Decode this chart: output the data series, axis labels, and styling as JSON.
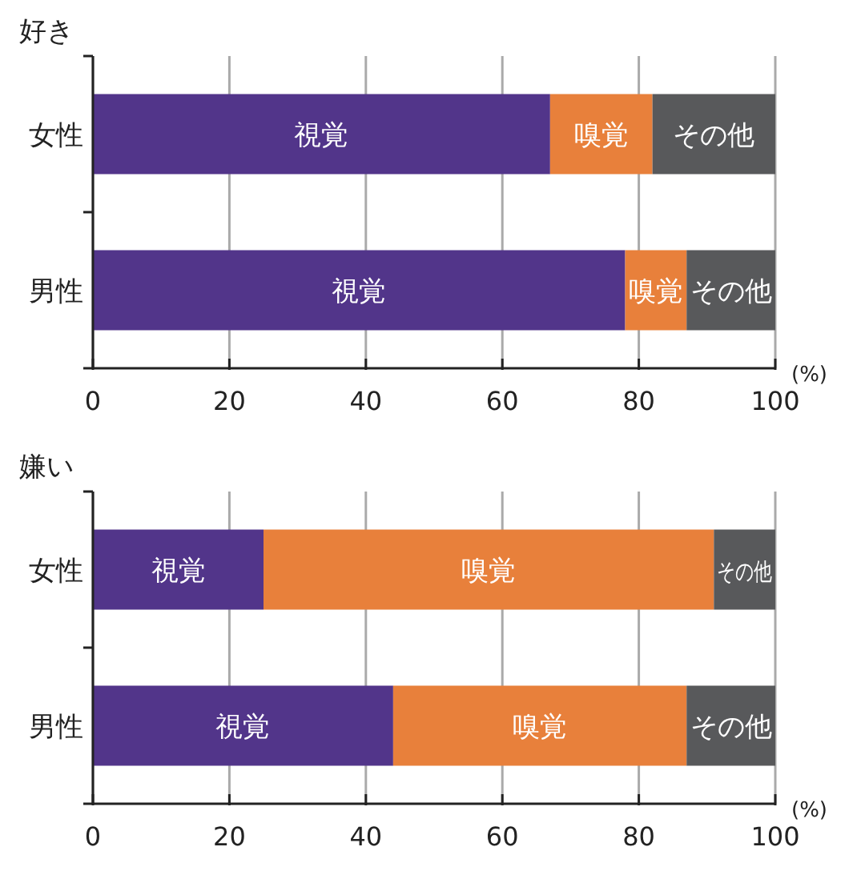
{
  "chart_data": [
    {
      "type": "bar",
      "orientation": "horizontal",
      "stacked": true,
      "title": "好き",
      "xlabel": "(%)",
      "categories": [
        "女性",
        "男性"
      ],
      "xlim": [
        0,
        100
      ],
      "xticks": [
        0,
        20,
        40,
        60,
        80,
        100
      ],
      "grid": "x",
      "series": [
        {
          "name": "視覚",
          "color": "#52358a",
          "values": [
            67,
            78
          ]
        },
        {
          "name": "嗅覚",
          "color": "#e8803b",
          "values": [
            15,
            9
          ]
        },
        {
          "name": "その他",
          "color": "#58595b",
          "values": [
            18,
            13
          ]
        }
      ]
    },
    {
      "type": "bar",
      "orientation": "horizontal",
      "stacked": true,
      "title": "嫌い",
      "xlabel": "(%)",
      "categories": [
        "女性",
        "男性"
      ],
      "xlim": [
        0,
        100
      ],
      "xticks": [
        0,
        20,
        40,
        60,
        80,
        100
      ],
      "grid": "x",
      "series": [
        {
          "name": "視覚",
          "color": "#52358a",
          "values": [
            25,
            44
          ]
        },
        {
          "name": "嗅覚",
          "color": "#e8803b",
          "values": [
            66,
            43
          ]
        },
        {
          "name": "その他",
          "color": "#58595b",
          "values": [
            9,
            13
          ]
        }
      ]
    }
  ]
}
